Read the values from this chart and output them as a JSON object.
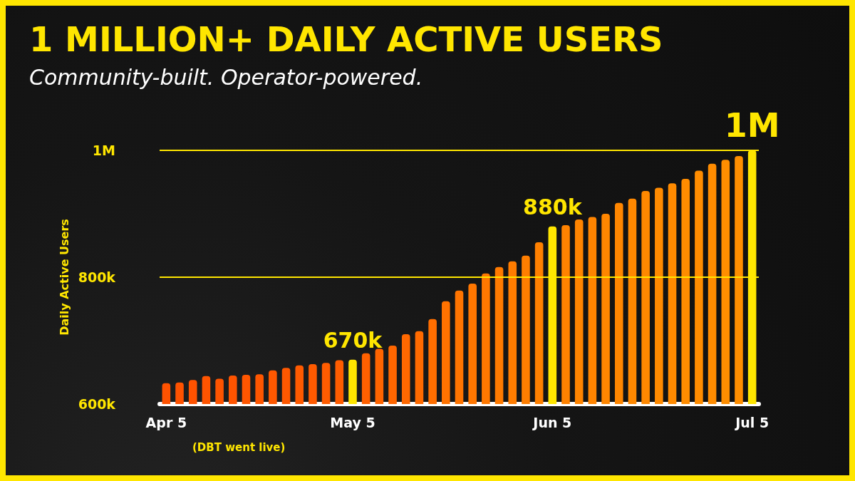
{
  "chart_data": {
    "type": "bar",
    "title": "1 MILLION+ DAILY ACTIVE USERS",
    "subtitle": "Community-built. Operator-powered.",
    "ylabel": "Daily Active Users",
    "categories": [
      "Apr 5",
      null,
      null,
      null,
      null,
      null,
      null,
      null,
      null,
      null,
      null,
      null,
      null,
      null,
      "May 5",
      null,
      null,
      null,
      null,
      null,
      null,
      null,
      null,
      null,
      null,
      null,
      null,
      null,
      null,
      "Jun 5",
      null,
      null,
      null,
      null,
      null,
      null,
      null,
      null,
      null,
      null,
      null,
      null,
      null,
      null,
      "Jul 5"
    ],
    "values": [
      633000,
      634000,
      638000,
      644000,
      640000,
      645000,
      646000,
      647000,
      653000,
      657000,
      661000,
      663000,
      665000,
      669000,
      670000,
      680000,
      687000,
      692000,
      710000,
      715000,
      734000,
      762000,
      779000,
      790000,
      806000,
      816000,
      825000,
      834000,
      855000,
      880000,
      882000,
      891000,
      895000,
      900000,
      917000,
      924000,
      936000,
      941000,
      948000,
      955000,
      968000,
      979000,
      985000,
      991000,
      1000000
    ],
    "colors": [
      "#ff5200",
      "#ff5200",
      "#ff5200",
      "#ff5400",
      "#ff5400",
      "#ff5400",
      "#ff5600",
      "#ff5600",
      "#ff5800",
      "#ff5800",
      "#ff5a00",
      "#ff5a00",
      "#ff5c00",
      "#ff5c00",
      "#ffe600",
      "#ff6000",
      "#ff6400",
      "#ff6600",
      "#ff6800",
      "#ff6a00",
      "#ff6e00",
      "#ff7200",
      "#ff7400",
      "#ff7600",
      "#ff7800",
      "#ff7a00",
      "#ff7c00",
      "#ff7e00",
      "#ff8000",
      "#ffe600",
      "#ff8200",
      "#ff8400",
      "#ff8400",
      "#ff8600",
      "#ff8600",
      "#ff8800",
      "#ff8800",
      "#ff8a00",
      "#ff8a00",
      "#ff8c00",
      "#ff8c00",
      "#ff8c00",
      "#ff8e00",
      "#ff8e00",
      "#ffe600"
    ],
    "value_labels": [
      null,
      null,
      null,
      null,
      null,
      null,
      null,
      null,
      null,
      null,
      null,
      null,
      null,
      null,
      "670k",
      null,
      null,
      null,
      null,
      null,
      null,
      null,
      null,
      null,
      null,
      null,
      null,
      null,
      null,
      "880k",
      null,
      null,
      null,
      null,
      null,
      null,
      null,
      null,
      null,
      null,
      null,
      null,
      null,
      null,
      "1M"
    ],
    "ylim": [
      600000,
      1000000
    ],
    "yticks": [
      {
        "value": 600000,
        "label": "600k"
      },
      {
        "value": 800000,
        "label": "800k"
      },
      {
        "value": 1000000,
        "label": "1M"
      }
    ],
    "ref_lines": [
      {
        "axis": "y",
        "value": 800000,
        "color": "#ffe600"
      },
      {
        "axis": "y",
        "value": 1000000,
        "color": "#ffe600"
      }
    ],
    "annotations": [
      "(DBT went live)"
    ]
  }
}
